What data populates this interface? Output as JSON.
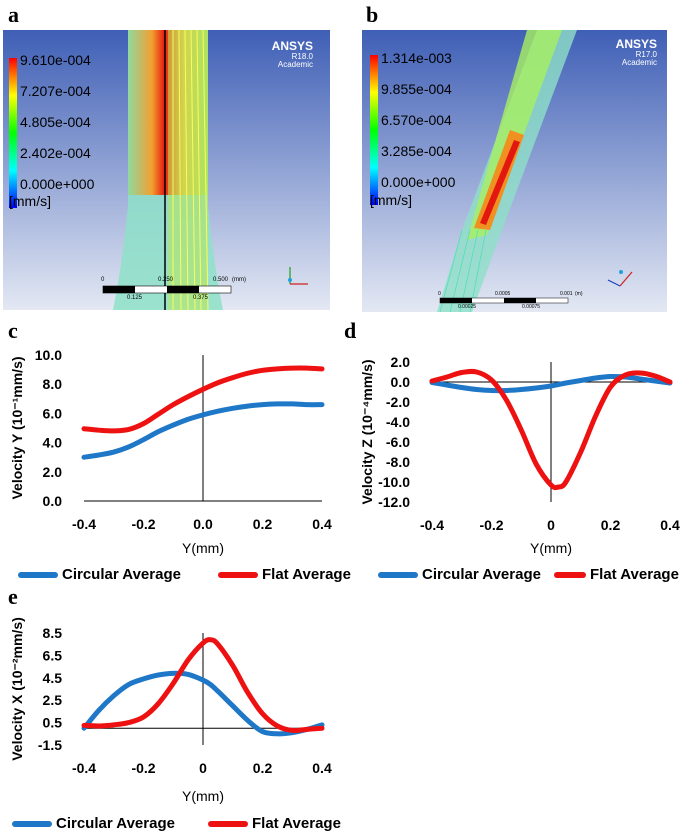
{
  "panels": {
    "a": {
      "label": "a",
      "legend_values": [
        "9.610e-004",
        "7.207e-004",
        "4.805e-004",
        "2.402e-004",
        "0.000e+000"
      ],
      "unit": "[mm/s]",
      "brand": "ANSYS",
      "version": "R18.0",
      "edition": "Academic",
      "scale_top": [
        "0",
        "0.250",
        "0.500",
        "(mm)"
      ],
      "scale_bottom": [
        "0.125",
        "0.375"
      ]
    },
    "b": {
      "label": "b",
      "legend_values": [
        "1.314e-003",
        "9.855e-004",
        "6.570e-004",
        "3.285e-004",
        "0.000e+000"
      ],
      "unit": "[mm/s]",
      "brand": "ANSYS",
      "version": "R17.0",
      "edition": "Academic",
      "scale_top": [
        "0",
        "0.0005",
        "0.001",
        "(m)"
      ],
      "scale_bottom": [
        "0.00025",
        "0.00075"
      ]
    },
    "c": {
      "label": "c"
    },
    "d": {
      "label": "d"
    },
    "e": {
      "label": "e"
    }
  },
  "legend": {
    "circular": "Circular Average",
    "flat": "Flat Average"
  },
  "colors": {
    "circular": "#1f77c8",
    "flat": "#ee1111"
  },
  "chart_data": [
    {
      "id": "c",
      "type": "line",
      "xlabel": "Y(mm)",
      "ylabel": "Velocity Y (10⁻¹mm/s)",
      "xlim": [
        -0.4,
        0.4
      ],
      "ylim": [
        0,
        10
      ],
      "xticks": [
        "-0.4",
        "-0.2",
        "0.0",
        "0.2",
        "0.4"
      ],
      "yticks": [
        "0.0",
        "2.0",
        "4.0",
        "6.0",
        "8.0",
        "10.0"
      ],
      "x": [
        -0.4,
        -0.35,
        -0.3,
        -0.25,
        -0.2,
        -0.15,
        -0.1,
        -0.05,
        0,
        0.05,
        0.1,
        0.15,
        0.2,
        0.25,
        0.3,
        0.35,
        0.4
      ],
      "series": [
        {
          "name": "Circular Average",
          "values": [
            3.0,
            3.15,
            3.35,
            3.7,
            4.2,
            4.75,
            5.2,
            5.6,
            5.9,
            6.15,
            6.35,
            6.5,
            6.6,
            6.65,
            6.65,
            6.6,
            6.6
          ]
        },
        {
          "name": "Flat Average",
          "values": [
            4.95,
            4.85,
            4.8,
            4.9,
            5.3,
            5.95,
            6.6,
            7.15,
            7.65,
            8.1,
            8.45,
            8.75,
            8.95,
            9.05,
            9.1,
            9.1,
            9.05
          ]
        }
      ]
    },
    {
      "id": "d",
      "type": "line",
      "xlabel": "Y(mm)",
      "ylabel": "Velocity Z (10⁻⁴mm/s)",
      "xlim": [
        -0.4,
        0.4
      ],
      "ylim": [
        -12,
        2
      ],
      "xticks": [
        "-0.4",
        "-0.2",
        "0",
        "0.2",
        "0.4"
      ],
      "yticks": [
        "-12.0",
        "-10.0",
        "-8.0",
        "-6.0",
        "-4.0",
        "-2.0",
        "0.0",
        "2.0"
      ],
      "x": [
        -0.4,
        -0.35,
        -0.3,
        -0.25,
        -0.2,
        -0.15,
        -0.1,
        -0.05,
        0,
        0.025,
        0.05,
        0.1,
        0.15,
        0.2,
        0.25,
        0.3,
        0.35,
        0.4
      ],
      "series": [
        {
          "name": "Circular Average",
          "values": [
            -0.05,
            -0.3,
            -0.55,
            -0.75,
            -0.85,
            -0.85,
            -0.75,
            -0.6,
            -0.4,
            -0.25,
            -0.1,
            0.15,
            0.4,
            0.55,
            0.5,
            0.3,
            0.1,
            -0.1
          ]
        },
        {
          "name": "Flat Average",
          "values": [
            0.1,
            0.5,
            0.95,
            1.0,
            0.2,
            -1.8,
            -4.8,
            -8.2,
            -10.3,
            -10.5,
            -10.0,
            -7.0,
            -3.4,
            -0.5,
            0.7,
            0.9,
            0.6,
            0.0
          ]
        }
      ]
    },
    {
      "id": "e",
      "type": "line",
      "xlabel": "Y(mm)",
      "ylabel": "Velocity X (10⁻²mm/s)",
      "xlim": [
        -0.4,
        0.4
      ],
      "ylim": [
        -1.5,
        8.5
      ],
      "xticks": [
        "-0.4",
        "-0.2",
        "0",
        "0.2",
        "0.4"
      ],
      "yticks": [
        "-1.5",
        "0.5",
        "2.5",
        "4.5",
        "6.5",
        "8.5"
      ],
      "x": [
        -0.4,
        -0.35,
        -0.3,
        -0.25,
        -0.2,
        -0.15,
        -0.1,
        -0.05,
        0,
        0.025,
        0.05,
        0.1,
        0.15,
        0.2,
        0.25,
        0.3,
        0.35,
        0.4
      ],
      "series": [
        {
          "name": "Circular Average",
          "values": [
            0.0,
            1.6,
            2.9,
            3.9,
            4.4,
            4.75,
            4.9,
            4.8,
            4.3,
            3.9,
            3.3,
            2.0,
            0.7,
            -0.3,
            -0.5,
            -0.4,
            -0.1,
            0.3
          ]
        },
        {
          "name": "Flat Average",
          "values": [
            0.25,
            0.2,
            0.3,
            0.5,
            1.0,
            2.2,
            4.0,
            6.1,
            7.6,
            7.9,
            7.5,
            5.6,
            3.2,
            1.3,
            0.2,
            -0.2,
            -0.1,
            0.0
          ]
        }
      ]
    }
  ]
}
